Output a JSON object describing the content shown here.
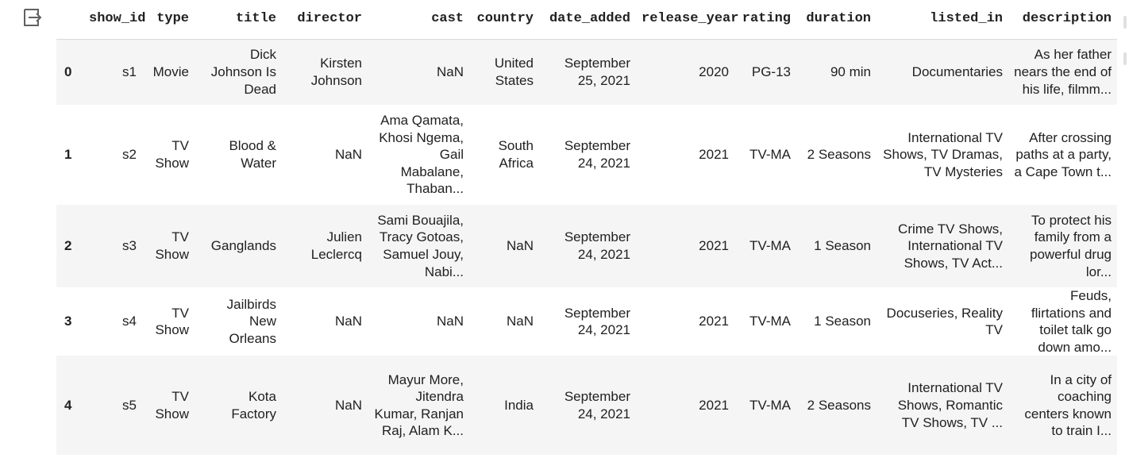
{
  "output": {
    "icon": "output-exit-icon"
  },
  "table": {
    "columns": [
      "",
      "show_id",
      "type",
      "title",
      "director",
      "cast",
      "country",
      "date_added",
      "release_year",
      "rating",
      "duration",
      "listed_in",
      "description"
    ],
    "rows": [
      {
        "index": "0",
        "cells": [
          "s1",
          "Movie",
          "Dick Johnson Is Dead",
          "Kirsten Johnson",
          "NaN",
          "United States",
          "September 25, 2021",
          "2020",
          "PG-13",
          "90 min",
          "Documentaries",
          "As her father nears the end of his life, filmm..."
        ]
      },
      {
        "index": "1",
        "cells": [
          "s2",
          "TV Show",
          "Blood & Water",
          "NaN",
          "Ama Qamata, Khosi Ngema, Gail Mabalane, Thaban...",
          "South Africa",
          "September 24, 2021",
          "2021",
          "TV-MA",
          "2 Seasons",
          "International TV Shows, TV Dramas, TV Mysteries",
          "After crossing paths at a party, a Cape Town t..."
        ]
      },
      {
        "index": "2",
        "cells": [
          "s3",
          "TV Show",
          "Ganglands",
          "Julien Leclercq",
          "Sami Bouajila, Tracy Gotoas, Samuel Jouy, Nabi...",
          "NaN",
          "September 24, 2021",
          "2021",
          "TV-MA",
          "1 Season",
          "Crime TV Shows, International TV Shows, TV Act...",
          "To protect his family from a powerful drug lor..."
        ]
      },
      {
        "index": "3",
        "cells": [
          "s4",
          "TV Show",
          "Jailbirds New Orleans",
          "NaN",
          "NaN",
          "NaN",
          "September 24, 2021",
          "2021",
          "TV-MA",
          "1 Season",
          "Docuseries, Reality TV",
          "Feuds, flirtations and toilet talk go down amo..."
        ]
      },
      {
        "index": "4",
        "cells": [
          "s5",
          "TV Show",
          "Kota Factory",
          "NaN",
          "Mayur More, Jitendra Kumar, Ranjan Raj, Alam K...",
          "India",
          "September 24, 2021",
          "2021",
          "TV-MA",
          "2 Seasons",
          "International TV Shows, Romantic TV Shows, TV ...",
          "In a city of coaching centers known to train I..."
        ]
      }
    ]
  }
}
